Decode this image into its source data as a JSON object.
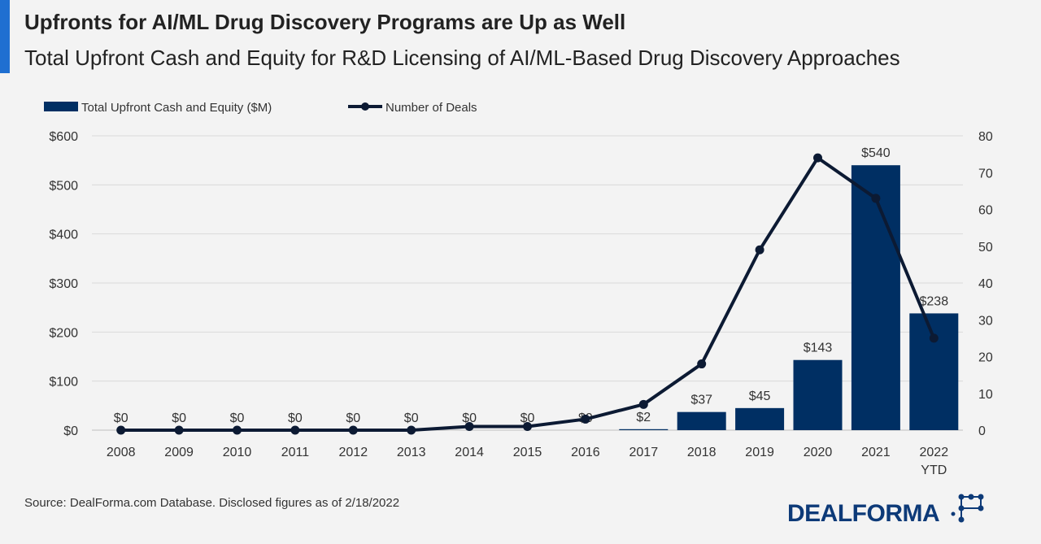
{
  "header": {
    "title": "Upfronts for AI/ML Drug Discovery Programs are Up as Well",
    "subtitle": "Total Upfront Cash and Equity for R&D Licensing of AI/ML-Based Drug Discovery Approaches"
  },
  "footer": {
    "source": "Source: DealForma.com Database. Disclosed figures as of 2/18/2022",
    "logo_text": "DEALFORMA"
  },
  "colors": {
    "bar": "#002f63",
    "line": "#0c1a33",
    "accent": "#1f6fd1",
    "grid": "#d9d9d9"
  },
  "chart_data": {
    "type": "bar",
    "categories": [
      "2008",
      "2009",
      "2010",
      "2011",
      "2012",
      "2013",
      "2014",
      "2015",
      "2016",
      "2017",
      "2018",
      "2019",
      "2020",
      "2021",
      "2022\nYTD"
    ],
    "series": [
      {
        "name": "Total Upfront Cash and Equity ($M)",
        "type": "bar",
        "axis": "left",
        "values": [
          0,
          0,
          0,
          0,
          0,
          0,
          0,
          0,
          0,
          2,
          37,
          45,
          143,
          540,
          238
        ],
        "labels": [
          "$0",
          "$0",
          "$0",
          "$0",
          "$0",
          "$0",
          "$0",
          "$0",
          "$0",
          "$2",
          "$37",
          "$45",
          "$143",
          "$540",
          "$238"
        ]
      },
      {
        "name": "Number of Deals",
        "type": "line",
        "axis": "right",
        "values": [
          0,
          0,
          0,
          0,
          0,
          0,
          1,
          1,
          3,
          7,
          18,
          49,
          74,
          63,
          25
        ]
      }
    ],
    "y_left": {
      "min": 0,
      "max": 600,
      "ticks": [
        0,
        100,
        200,
        300,
        400,
        500,
        600
      ],
      "tick_labels": [
        "$0",
        "$100",
        "$200",
        "$300",
        "$400",
        "$500",
        "$600"
      ]
    },
    "y_right": {
      "min": 0,
      "max": 80,
      "ticks": [
        0,
        10,
        20,
        30,
        40,
        50,
        60,
        70,
        80
      ],
      "tick_labels": [
        "0",
        "10",
        "20",
        "30",
        "40",
        "50",
        "60",
        "70",
        "80"
      ]
    },
    "legend": {
      "position": "top-left",
      "entries": [
        "Total Upfront Cash and Equity ($M)",
        "Number of Deals"
      ]
    },
    "grid": true
  }
}
